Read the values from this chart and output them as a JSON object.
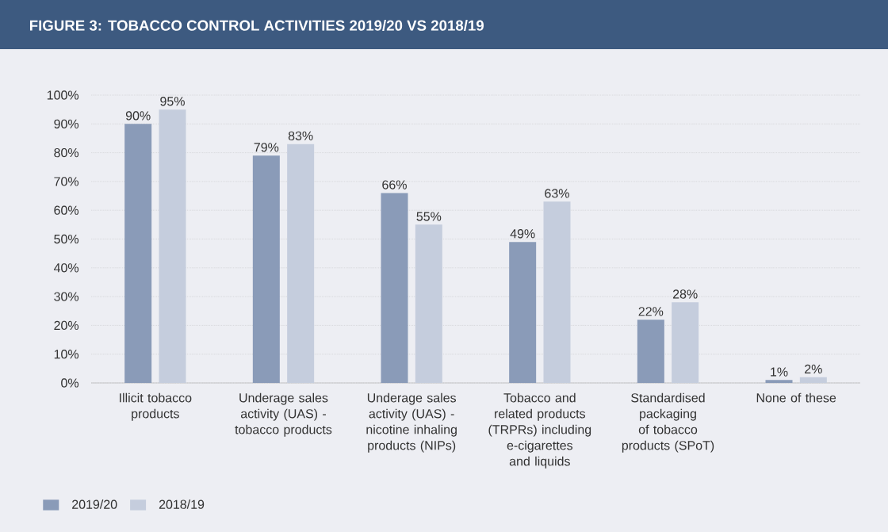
{
  "chart_data": {
    "type": "bar",
    "title": "FIGURE 3: TOBACCO CONTROL ACTIVITIES 2019/20 VS 2018/19",
    "categories": [
      "Illicit tobacco products",
      "Underage sales activity (UAS) - tobacco products",
      "Underage sales activity (UAS) - nicotine inhaling products (NIPs)",
      "Tobacco and related products (TRPRs) including e-cigarettes and liquids",
      "Standardised packaging of tobacco products (SPoT)",
      "None of these"
    ],
    "series": [
      {
        "name": "2019/20",
        "color": "#8a9bb8",
        "values": [
          90,
          79,
          66,
          49,
          22,
          1
        ],
        "value_labels": [
          "90%",
          "79%",
          "66%",
          "49%",
          "22%",
          "1%"
        ]
      },
      {
        "name": "2018/19",
        "color": "#c5cddd",
        "values": [
          95,
          83,
          55,
          63,
          28,
          2
        ],
        "value_labels": [
          "95%",
          "83%",
          "55%",
          "63%",
          "28%",
          "2%"
        ]
      }
    ],
    "ylim": [
      0,
      100
    ],
    "yticks": [
      {
        "value": 0,
        "label": "0%"
      },
      {
        "value": 10,
        "label": "10%"
      },
      {
        "value": 20,
        "label": "20%"
      },
      {
        "value": 30,
        "label": "30%"
      },
      {
        "value": 40,
        "label": "40%"
      },
      {
        "value": 50,
        "label": "50%"
      },
      {
        "value": 60,
        "label": "60%"
      },
      {
        "value": 70,
        "label": "70%"
      },
      {
        "value": 80,
        "label": "80%"
      },
      {
        "value": 90,
        "label": "90%"
      },
      {
        "value": 100,
        "label": "100%"
      }
    ],
    "grid": "y",
    "legend": "bottom left"
  }
}
